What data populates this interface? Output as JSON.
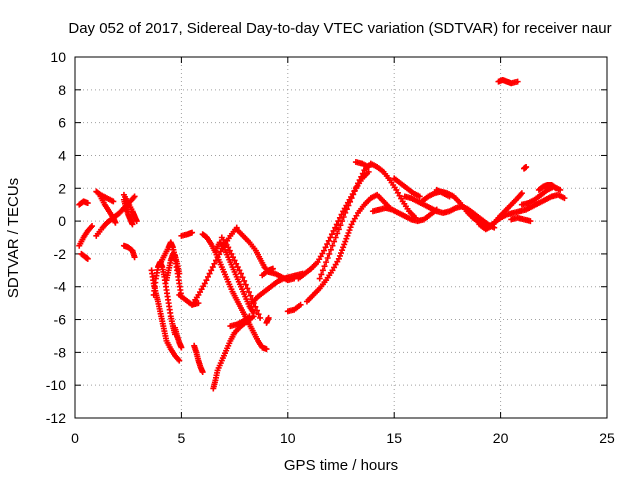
{
  "chart_data": {
    "type": "scatter",
    "title": "Day 052 of 2017, Sidereal Day-to-day VTEC variation (SDTVAR) for receiver naur",
    "xlabel": "GPS time / hours",
    "ylabel": "SDTVAR / TECUs",
    "xlim": [
      0,
      25
    ],
    "ylim": [
      -12,
      10
    ],
    "xticks": [
      "0",
      "5",
      "10",
      "15",
      "20",
      "25"
    ],
    "yticks": [
      "-12",
      "-10",
      "-8",
      "-6",
      "-4",
      "-2",
      "0",
      "2",
      "4",
      "6",
      "8",
      "10"
    ],
    "grid": true,
    "marker": "plus",
    "color": "#ff0000",
    "tracks": [
      [
        [
          0.2,
          -1.5
        ],
        [
          0.4,
          -1.0
        ],
        [
          0.6,
          -0.6
        ],
        [
          0.8,
          -0.3
        ]
      ],
      [
        [
          0.3,
          -2.0
        ],
        [
          0.5,
          -2.2
        ],
        [
          0.6,
          -2.3
        ]
      ],
      [
        [
          0.2,
          1.0
        ],
        [
          0.4,
          1.2
        ],
        [
          0.6,
          1.1
        ]
      ],
      [
        [
          1.0,
          1.8
        ],
        [
          1.2,
          1.6
        ],
        [
          1.5,
          1.4
        ],
        [
          1.8,
          1.2
        ]
      ],
      [
        [
          1.0,
          -0.9
        ],
        [
          1.3,
          -0.4
        ],
        [
          1.5,
          -0.1
        ],
        [
          1.7,
          0.1
        ],
        [
          1.9,
          0.3
        ],
        [
          2.1,
          0.5
        ],
        [
          2.3,
          0.8
        ],
        [
          2.6,
          1.2
        ],
        [
          2.8,
          1.5
        ]
      ],
      [
        [
          1.2,
          1.5
        ],
        [
          1.4,
          1.0
        ],
        [
          1.6,
          0.6
        ],
        [
          1.8,
          0.2
        ],
        [
          1.9,
          -0.1
        ]
      ],
      [
        [
          2.3,
          1.3
        ],
        [
          2.4,
          0.8
        ],
        [
          2.5,
          0.4
        ],
        [
          2.6,
          0.1
        ],
        [
          2.7,
          -0.2
        ]
      ],
      [
        [
          2.3,
          1.6
        ],
        [
          2.5,
          1.1
        ],
        [
          2.7,
          0.6
        ],
        [
          2.8,
          0.3
        ],
        [
          2.9,
          0.0
        ]
      ],
      [
        [
          2.3,
          -1.5
        ],
        [
          2.5,
          -1.6
        ],
        [
          2.7,
          -1.8
        ],
        [
          2.8,
          -2.2
        ]
      ],
      [
        [
          3.6,
          -3.0
        ],
        [
          3.7,
          -3.8
        ],
        [
          3.8,
          -4.4
        ],
        [
          3.9,
          -4.9
        ],
        [
          4.0,
          -5.5
        ],
        [
          4.1,
          -6.1
        ],
        [
          4.2,
          -6.7
        ],
        [
          4.3,
          -7.3
        ],
        [
          4.5,
          -7.8
        ],
        [
          4.7,
          -8.2
        ],
        [
          4.9,
          -8.5
        ]
      ],
      [
        [
          3.7,
          -4.5
        ],
        [
          3.8,
          -3.5
        ],
        [
          3.9,
          -2.8
        ],
        [
          4.0,
          -2.5
        ],
        [
          4.1,
          -2.8
        ],
        [
          4.2,
          -3.4
        ],
        [
          4.3,
          -4.2
        ],
        [
          4.4,
          -5.0
        ],
        [
          4.5,
          -5.8
        ],
        [
          4.6,
          -6.4
        ],
        [
          4.7,
          -6.9
        ]
      ],
      [
        [
          4.0,
          -2.6
        ],
        [
          4.2,
          -2.1
        ],
        [
          4.4,
          -1.6
        ],
        [
          4.5,
          -1.3
        ],
        [
          4.6,
          -1.6
        ],
        [
          4.7,
          -2.2
        ],
        [
          4.8,
          -3.0
        ],
        [
          4.9,
          -3.8
        ],
        [
          5.0,
          -4.6
        ]
      ],
      [
        [
          4.3,
          -3.6
        ],
        [
          4.4,
          -3.0
        ],
        [
          4.5,
          -2.4
        ],
        [
          4.6,
          -2.0
        ],
        [
          4.7,
          -2.1
        ],
        [
          4.8,
          -2.6
        ],
        [
          4.9,
          -3.2
        ]
      ],
      [
        [
          4.7,
          -6.5
        ],
        [
          4.8,
          -7.0
        ],
        [
          4.9,
          -7.4
        ],
        [
          5.0,
          -7.7
        ]
      ],
      [
        [
          4.9,
          -4.5
        ],
        [
          5.2,
          -4.8
        ],
        [
          5.5,
          -5.1
        ],
        [
          5.8,
          -5.0
        ]
      ],
      [
        [
          5.0,
          -0.9
        ],
        [
          5.3,
          -0.8
        ],
        [
          5.5,
          -0.7
        ]
      ],
      [
        [
          5.6,
          -7.6
        ],
        [
          5.7,
          -8.0
        ],
        [
          5.8,
          -8.5
        ],
        [
          5.9,
          -8.9
        ],
        [
          6.0,
          -9.2
        ]
      ],
      [
        [
          5.5,
          -5.1
        ],
        [
          5.8,
          -4.5
        ],
        [
          6.1,
          -3.8
        ],
        [
          6.4,
          -3.0
        ],
        [
          6.7,
          -2.2
        ],
        [
          7.0,
          -1.5
        ],
        [
          7.3,
          -0.9
        ],
        [
          7.6,
          -0.4
        ]
      ],
      [
        [
          6.0,
          -0.8
        ],
        [
          6.2,
          -1.0
        ],
        [
          6.4,
          -1.4
        ],
        [
          6.6,
          -1.9
        ],
        [
          6.8,
          -2.5
        ],
        [
          7.0,
          -3.1
        ],
        [
          7.2,
          -3.7
        ],
        [
          7.4,
          -4.3
        ],
        [
          7.6,
          -4.8
        ],
        [
          7.8,
          -5.3
        ],
        [
          8.0,
          -5.8
        ],
        [
          8.2,
          -6.3
        ],
        [
          8.4,
          -6.8
        ],
        [
          8.6,
          -7.3
        ],
        [
          8.8,
          -7.7
        ],
        [
          9.0,
          -7.8
        ]
      ],
      [
        [
          6.5,
          -10.2
        ],
        [
          6.6,
          -9.7
        ],
        [
          6.7,
          -9.1
        ],
        [
          6.9,
          -8.5
        ],
        [
          7.1,
          -7.9
        ],
        [
          7.3,
          -7.3
        ],
        [
          7.5,
          -6.8
        ],
        [
          7.8,
          -6.4
        ],
        [
          8.1,
          -6.1
        ],
        [
          8.4,
          -5.8
        ]
      ],
      [
        [
          6.6,
          -1.8
        ],
        [
          6.8,
          -1.3
        ],
        [
          7.0,
          -1.6
        ],
        [
          7.2,
          -2.2
        ],
        [
          7.4,
          -2.8
        ],
        [
          7.6,
          -3.4
        ],
        [
          7.8,
          -4.0
        ],
        [
          8.0,
          -4.6
        ],
        [
          8.2,
          -5.2
        ],
        [
          8.4,
          -5.6
        ]
      ],
      [
        [
          6.9,
          -1.0
        ],
        [
          7.2,
          -1.6
        ],
        [
          7.5,
          -2.4
        ],
        [
          7.8,
          -3.2
        ],
        [
          8.1,
          -4.1
        ],
        [
          8.4,
          -5.0
        ],
        [
          8.7,
          -5.9
        ]
      ],
      [
        [
          7.3,
          -6.4
        ],
        [
          7.6,
          -6.3
        ],
        [
          7.9,
          -6.1
        ],
        [
          8.2,
          -5.8
        ]
      ],
      [
        [
          7.6,
          -0.5
        ],
        [
          7.9,
          -0.9
        ],
        [
          8.2,
          -1.3
        ],
        [
          8.5,
          -1.8
        ],
        [
          8.7,
          -2.3
        ],
        [
          8.9,
          -2.8
        ],
        [
          9.1,
          -3.1
        ],
        [
          9.4,
          -3.2
        ],
        [
          9.7,
          -3.4
        ],
        [
          10.0,
          -3.6
        ],
        [
          10.3,
          -3.5
        ]
      ],
      [
        [
          8.3,
          -5.0
        ],
        [
          8.6,
          -4.6
        ],
        [
          8.9,
          -4.3
        ],
        [
          9.2,
          -4.0
        ],
        [
          9.5,
          -3.7
        ],
        [
          9.8,
          -3.5
        ],
        [
          10.1,
          -3.4
        ],
        [
          10.4,
          -3.3
        ],
        [
          10.7,
          -3.2
        ]
      ],
      [
        [
          8.8,
          -3.3
        ],
        [
          9.1,
          -3.0
        ],
        [
          9.3,
          -2.9
        ]
      ],
      [
        [
          9.0,
          -6.2
        ],
        [
          9.1,
          -5.9
        ]
      ],
      [
        [
          10.0,
          -5.5
        ],
        [
          10.3,
          -5.4
        ],
        [
          10.6,
          -5.1
        ]
      ],
      [
        [
          10.5,
          -3.5
        ],
        [
          10.8,
          -3.2
        ],
        [
          11.1,
          -2.9
        ],
        [
          11.4,
          -2.5
        ],
        [
          11.7,
          -1.8
        ],
        [
          12.0,
          -1.0
        ],
        [
          12.3,
          -0.2
        ],
        [
          12.6,
          0.6
        ],
        [
          12.9,
          1.3
        ],
        [
          13.2,
          2.0
        ],
        [
          13.5,
          2.6
        ],
        [
          13.8,
          3.0
        ]
      ],
      [
        [
          10.9,
          -4.9
        ],
        [
          11.2,
          -4.5
        ],
        [
          11.5,
          -4.1
        ],
        [
          11.8,
          -3.6
        ],
        [
          12.1,
          -3.0
        ],
        [
          12.4,
          -2.3
        ],
        [
          12.6,
          -1.6
        ],
        [
          12.8,
          -0.9
        ],
        [
          13.0,
          -0.2
        ],
        [
          13.3,
          0.5
        ],
        [
          13.6,
          1.0
        ],
        [
          13.9,
          1.4
        ],
        [
          14.2,
          1.6
        ],
        [
          14.5,
          1.2
        ],
        [
          14.8,
          0.8
        ]
      ],
      [
        [
          11.5,
          -3.5
        ],
        [
          11.8,
          -2.5
        ],
        [
          12.1,
          -1.5
        ],
        [
          12.4,
          -0.5
        ],
        [
          12.7,
          0.5
        ],
        [
          13.0,
          1.4
        ],
        [
          13.3,
          2.3
        ],
        [
          13.6,
          3.1
        ],
        [
          13.9,
          3.5
        ],
        [
          14.2,
          3.3
        ],
        [
          14.5,
          3.0
        ],
        [
          14.8,
          2.5
        ],
        [
          15.1,
          1.9
        ],
        [
          15.4,
          1.2
        ],
        [
          15.7,
          0.6
        ],
        [
          16.0,
          0.2
        ]
      ],
      [
        [
          13.2,
          3.6
        ],
        [
          13.5,
          3.5
        ],
        [
          13.8,
          3.3
        ]
      ],
      [
        [
          14.0,
          0.6
        ],
        [
          14.3,
          0.7
        ],
        [
          14.6,
          0.8
        ],
        [
          14.9,
          0.7
        ],
        [
          15.2,
          0.5
        ],
        [
          15.5,
          0.3
        ],
        [
          15.8,
          0.1
        ],
        [
          16.1,
          0.0
        ],
        [
          16.4,
          0.1
        ],
        [
          16.7,
          0.4
        ],
        [
          17.0,
          0.7
        ]
      ],
      [
        [
          15.0,
          2.6
        ],
        [
          15.3,
          2.3
        ],
        [
          15.6,
          2.0
        ],
        [
          15.9,
          1.7
        ],
        [
          16.2,
          1.5
        ]
      ],
      [
        [
          15.5,
          1.5
        ],
        [
          15.8,
          1.4
        ],
        [
          16.1,
          1.2
        ],
        [
          16.4,
          1.0
        ],
        [
          16.7,
          0.8
        ],
        [
          17.0,
          0.6
        ],
        [
          17.3,
          0.5
        ],
        [
          17.6,
          0.6
        ],
        [
          17.9,
          0.8
        ],
        [
          18.2,
          0.9
        ],
        [
          18.5,
          0.7
        ],
        [
          18.8,
          0.4
        ],
        [
          19.1,
          0.1
        ],
        [
          19.4,
          -0.2
        ],
        [
          19.7,
          -0.4
        ]
      ],
      [
        [
          16.3,
          1.2
        ],
        [
          16.6,
          1.5
        ],
        [
          16.9,
          1.7
        ],
        [
          17.2,
          1.8
        ],
        [
          17.5,
          1.7
        ],
        [
          17.8,
          1.5
        ],
        [
          18.1,
          1.1
        ],
        [
          18.4,
          0.6
        ],
        [
          18.7,
          0.2
        ],
        [
          19.0,
          -0.1
        ],
        [
          19.3,
          -0.3
        ]
      ],
      [
        [
          17.0,
          1.9
        ],
        [
          17.3,
          1.7
        ],
        [
          17.6,
          1.5
        ]
      ],
      [
        [
          19.0,
          -0.2
        ],
        [
          19.3,
          -0.5
        ],
        [
          19.6,
          -0.3
        ],
        [
          19.9,
          0.2
        ],
        [
          20.2,
          0.6
        ],
        [
          20.5,
          1.0
        ],
        [
          20.8,
          1.4
        ],
        [
          21.0,
          1.7
        ]
      ],
      [
        [
          19.4,
          -0.4
        ],
        [
          19.7,
          -0.1
        ],
        [
          20.0,
          0.2
        ],
        [
          20.3,
          0.4
        ],
        [
          20.6,
          0.5
        ],
        [
          20.9,
          0.6
        ],
        [
          21.2,
          0.7
        ],
        [
          21.5,
          0.9
        ],
        [
          21.8,
          1.1
        ],
        [
          22.1,
          1.3
        ],
        [
          22.4,
          1.5
        ],
        [
          22.7,
          1.6
        ],
        [
          23.0,
          1.4
        ]
      ],
      [
        [
          19.9,
          8.5
        ],
        [
          20.1,
          8.6
        ],
        [
          20.3,
          8.5
        ],
        [
          20.5,
          8.4
        ],
        [
          20.8,
          8.5
        ]
      ],
      [
        [
          20.5,
          0.1
        ],
        [
          20.8,
          0.2
        ],
        [
          21.1,
          0.1
        ],
        [
          21.4,
          0.0
        ]
      ],
      [
        [
          21.1,
          3.2
        ],
        [
          21.2,
          3.3
        ]
      ],
      [
        [
          21.0,
          1.0
        ],
        [
          21.3,
          1.1
        ],
        [
          21.6,
          1.3
        ],
        [
          21.9,
          1.6
        ],
        [
          22.2,
          1.9
        ],
        [
          22.5,
          2.1
        ],
        [
          22.8,
          1.9
        ]
      ],
      [
        [
          21.8,
          1.9
        ],
        [
          22.0,
          2.1
        ],
        [
          22.2,
          2.2
        ],
        [
          22.4,
          2.2
        ],
        [
          22.6,
          2.0
        ]
      ]
    ]
  }
}
